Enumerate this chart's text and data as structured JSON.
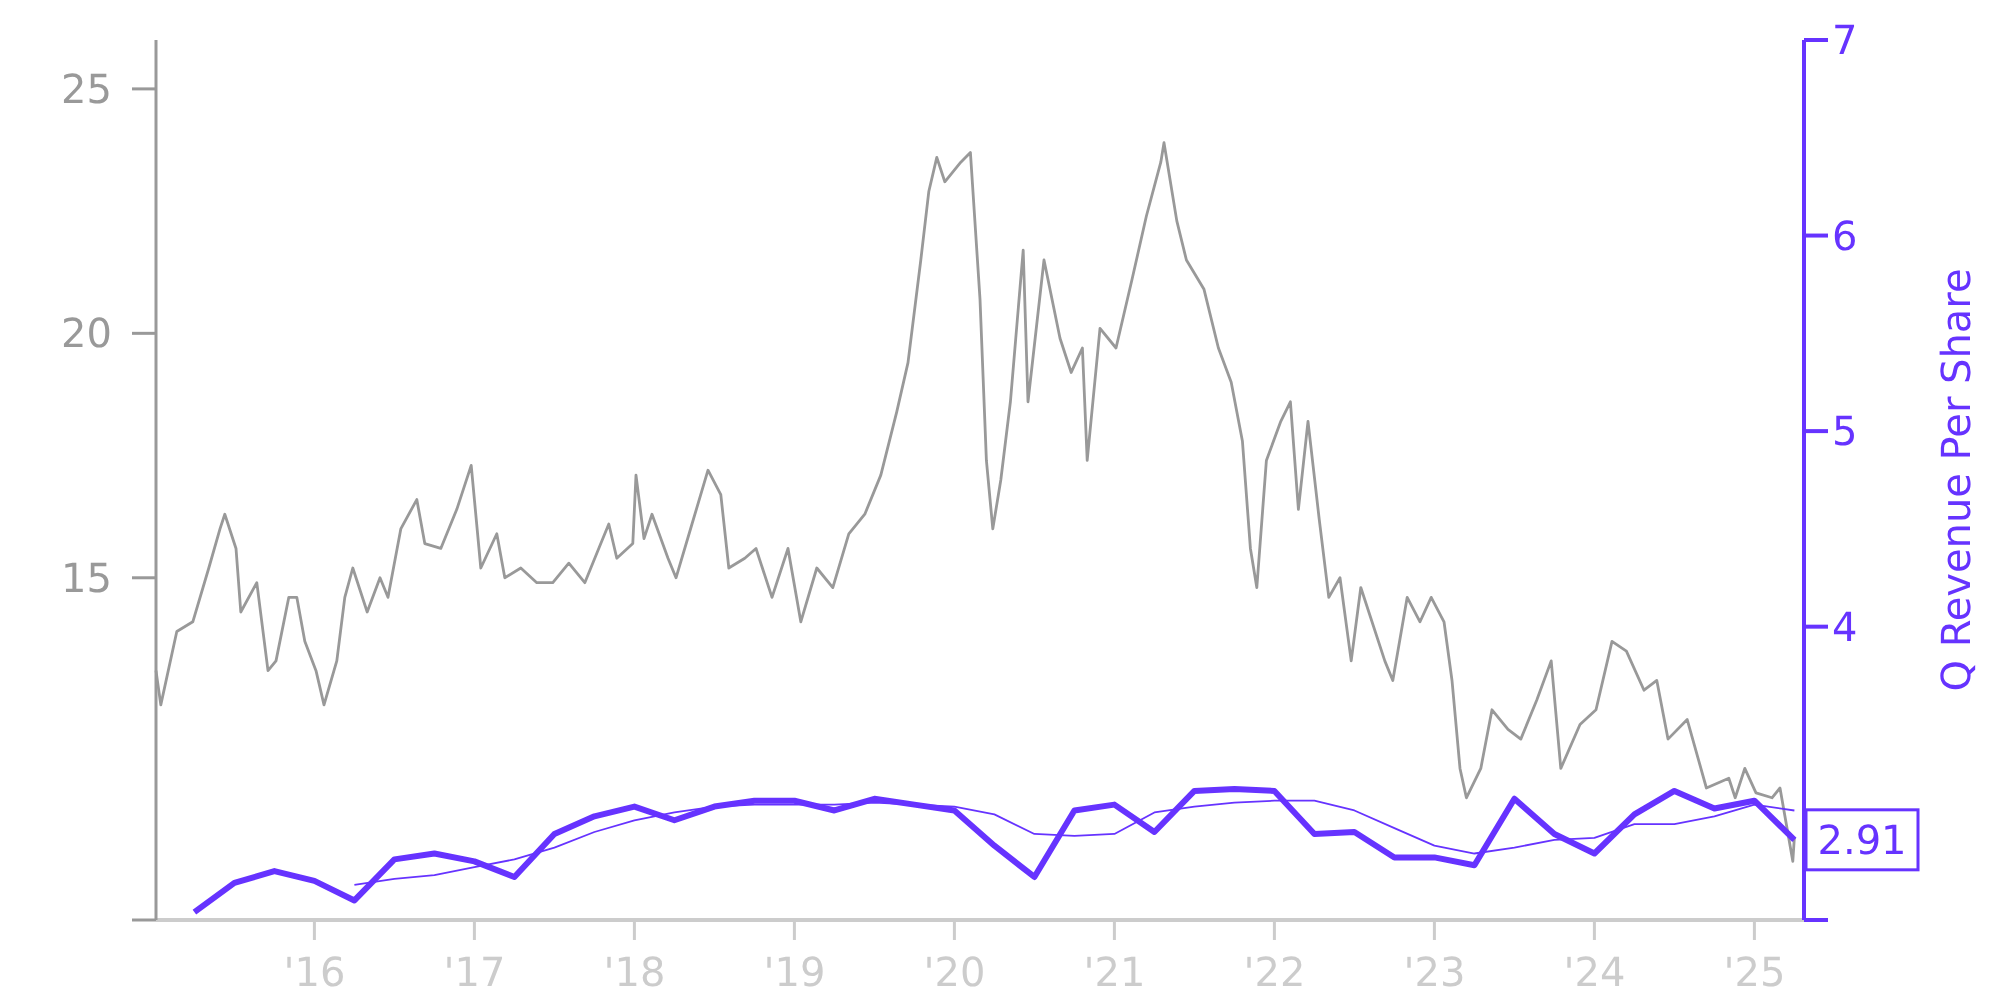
{
  "chart_data": {
    "type": "line",
    "y2label": "Q Revenue Per Share",
    "grid": false,
    "xlim": [
      2015.01,
      2025.31
    ],
    "ylim": [
      8,
      26
    ],
    "y2lim": [
      2.5,
      7
    ],
    "xticks": [
      {
        "value": 2016,
        "label": "'16"
      },
      {
        "value": 2017,
        "label": "'17"
      },
      {
        "value": 2018,
        "label": "'18"
      },
      {
        "value": 2019,
        "label": "'19"
      },
      {
        "value": 2020,
        "label": "'20"
      },
      {
        "value": 2021,
        "label": "'21"
      },
      {
        "value": 2022,
        "label": "'22"
      },
      {
        "value": 2023,
        "label": "'23"
      },
      {
        "value": 2024,
        "label": "'24"
      },
      {
        "value": 2025,
        "label": "'25"
      }
    ],
    "yticks": [
      {
        "value": 8,
        "label": null
      },
      15,
      20,
      25
    ],
    "y2ticks": [
      {
        "value": 2.5,
        "label": null
      },
      4,
      5,
      6,
      7
    ],
    "x": [
      2015.25,
      2015.5,
      2015.75,
      2016,
      2016.25,
      2016.5,
      2016.75,
      2017,
      2017.25,
      2017.5,
      2017.75,
      2018,
      2018.25,
      2018.5,
      2018.75,
      2019,
      2019.25,
      2019.5,
      2019.75,
      2020,
      2020.25,
      2020.5,
      2020.75,
      2021,
      2021.25,
      2021.5,
      2021.75,
      2022,
      2022.25,
      2022.5,
      2022.75,
      2023,
      2023.25,
      2023.5,
      2023.75,
      2024,
      2024.25,
      2024.5,
      2024.75,
      2025,
      2025.25
    ],
    "series": [
      {
        "color": "#999999",
        "x": [
          2015.01,
          2015.04,
          2015.14,
          2015.24,
          2015.34,
          2015.41,
          2015.44,
          2015.51,
          2015.54,
          2015.64,
          2015.71,
          2015.76,
          2015.84,
          2015.89,
          2015.94,
          2016.01,
          2016.06,
          2016.14,
          2016.19,
          2016.24,
          2016.33,
          2016.41,
          2016.46,
          2016.54,
          2016.64,
          2016.69,
          2016.79,
          2016.89,
          2016.98,
          2017.04,
          2017.14,
          2017.19,
          2017.29,
          2017.39,
          2017.49,
          2017.59,
          2017.69,
          2017.79,
          2017.84,
          2017.89,
          2017.99,
          2018.01,
          2018.06,
          2018.11,
          2018.21,
          2018.26,
          2018.36,
          2018.46,
          2018.54,
          2018.59,
          2018.69,
          2018.76,
          2018.86,
          2018.96,
          2019.04,
          2019.14,
          2019.24,
          2019.34,
          2019.44,
          2019.54,
          2019.64,
          2019.71,
          2019.79,
          2019.84,
          2019.89,
          2019.94,
          2020.04,
          2020.1,
          2020.16,
          2020.2,
          2020.24,
          2020.29,
          2020.35,
          2020.43,
          2020.46,
          2020.56,
          2020.66,
          2020.73,
          2020.8,
          2020.83,
          2020.91,
          2021.01,
          2021.11,
          2021.2,
          2021.29,
          2021.31,
          2021.39,
          2021.45,
          2021.56,
          2021.65,
          2021.73,
          2021.8,
          2021.85,
          2021.89,
          2021.95,
          2022.04,
          2022.1,
          2022.15,
          2022.21,
          2022.28,
          2022.34,
          2022.41,
          2022.48,
          2022.54,
          2022.69,
          2022.74,
          2022.83,
          2022.91,
          2022.98,
          2023.06,
          2023.11,
          2023.16,
          2023.2,
          2023.29,
          2023.36,
          2023.46,
          2023.54,
          2023.64,
          2023.73,
          2023.79,
          2023.91,
          2024.01,
          2024.11,
          2024.2,
          2024.31,
          2024.39,
          2024.46,
          2024.58,
          2024.7,
          2024.84,
          2024.88,
          2024.94,
          2025.01,
          2025.11,
          2025.16,
          2025.24,
          2025.25
        ],
        "values": [
          13.1,
          12.4,
          13.9,
          14.1,
          15.2,
          16.0,
          16.3,
          15.6,
          14.3,
          14.9,
          13.1,
          13.3,
          14.6,
          14.6,
          13.7,
          13.1,
          12.4,
          13.3,
          14.6,
          15.2,
          14.3,
          15.0,
          14.6,
          16.0,
          16.6,
          15.7,
          15.6,
          16.4,
          17.3,
          15.2,
          15.9,
          15.0,
          15.2,
          14.9,
          14.9,
          15.3,
          14.9,
          15.7,
          16.1,
          15.4,
          15.7,
          17.1,
          15.8,
          16.3,
          15.4,
          15.0,
          16.1,
          17.2,
          16.7,
          15.2,
          15.4,
          15.6,
          14.6,
          15.6,
          14.1,
          15.2,
          14.8,
          15.9,
          16.3,
          17.1,
          18.4,
          19.4,
          21.5,
          22.9,
          23.6,
          23.1,
          23.5,
          23.7,
          20.7,
          17.4,
          16.0,
          17.0,
          18.6,
          21.7,
          18.6,
          21.5,
          19.9,
          19.2,
          19.7,
          17.4,
          20.1,
          19.7,
          21.1,
          22.4,
          23.5,
          23.9,
          22.3,
          21.5,
          20.9,
          19.7,
          19.0,
          17.8,
          15.6,
          14.8,
          17.4,
          18.2,
          18.6,
          16.4,
          18.2,
          16.2,
          14.6,
          15.0,
          13.3,
          14.8,
          13.3,
          12.9,
          14.6,
          14.1,
          14.6,
          14.1,
          12.9,
          11.1,
          10.5,
          11.1,
          12.3,
          11.9,
          11.7,
          12.5,
          13.3,
          11.1,
          12.0,
          12.3,
          13.7,
          13.5,
          12.7,
          12.9,
          11.7,
          12.1,
          10.7,
          10.9,
          10.5,
          11.1,
          10.6,
          10.5,
          10.7,
          9.2,
          9.7
        ]
      },
      {
        "color": "#6633ff",
        "axis": "y2",
        "values": [
          2.54,
          2.69,
          2.75,
          2.7,
          2.6,
          2.81,
          2.84,
          2.8,
          2.72,
          2.94,
          3.03,
          3.08,
          3.01,
          3.08,
          3.11,
          3.11,
          3.06,
          3.12,
          3.09,
          3.06,
          2.88,
          2.72,
          3.06,
          3.09,
          2.95,
          3.16,
          3.17,
          3.16,
          2.94,
          2.95,
          2.82,
          2.82,
          2.78,
          3.12,
          2.94,
          2.84,
          3.04,
          3.16,
          3.07,
          3.11,
          2.91
        ],
        "value_labels": [
          null,
          null,
          null,
          null,
          null,
          null,
          null,
          null,
          null,
          null,
          null,
          null,
          null,
          null,
          null,
          null,
          null,
          null,
          null,
          null,
          null,
          null,
          null,
          null,
          null,
          null,
          null,
          null,
          null,
          null,
          null,
          null,
          null,
          null,
          null,
          null,
          null,
          null,
          null,
          null,
          "2.91"
        ]
      },
      {
        "color": "#6633ff",
        "axis": "y2",
        "values": [
          null,
          null,
          null,
          null,
          2.68,
          2.71,
          2.73,
          2.77,
          2.81,
          2.87,
          2.95,
          3.01,
          3.05,
          3.08,
          3.09,
          3.09,
          3.09,
          3.1,
          3.09,
          3.08,
          3.04,
          2.94,
          2.93,
          2.94,
          3.05,
          3.08,
          3.1,
          3.11,
          3.11,
          3.06,
          2.97,
          2.88,
          2.84,
          2.87,
          2.91,
          2.92,
          2.99,
          2.99,
          3.03,
          3.09,
          3.06
        ]
      }
    ]
  }
}
